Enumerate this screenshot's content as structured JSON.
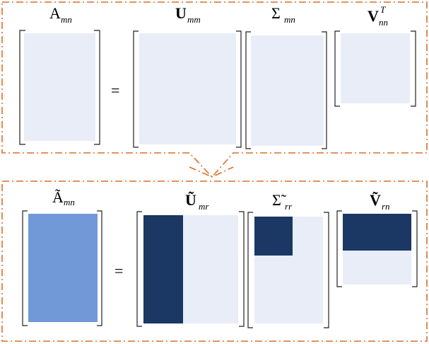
{
  "top": {
    "A": {
      "main": "A",
      "sub": "mn"
    },
    "U": {
      "main": "U",
      "sub": "mm"
    },
    "S": {
      "main": "Σ",
      "sub": "mn"
    },
    "V": {
      "main": "V",
      "sub": "nn",
      "sup": "T"
    },
    "equals": "="
  },
  "bottom": {
    "A": {
      "main": "Ã",
      "sub": "mn"
    },
    "U": {
      "main": "Ũ",
      "sub": "mr"
    },
    "S": {
      "main": "Σ̃",
      "sub": "rr"
    },
    "V": {
      "main": "Ṽ",
      "sub": "rn"
    },
    "equals": "="
  },
  "colors": {
    "frame": "#d9702a",
    "light": "#e8edf7",
    "medium": "#7199d8",
    "dark": "#1b3763"
  }
}
